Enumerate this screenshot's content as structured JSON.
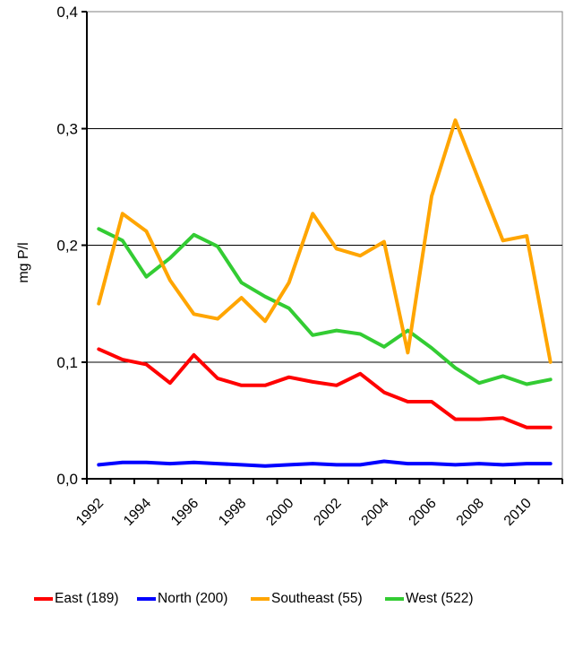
{
  "chart_data": {
    "type": "line",
    "title": "",
    "xlabel": "",
    "ylabel": "mg P/l",
    "ylim": [
      0,
      0.4
    ],
    "ytick_step": 0.1,
    "ytick_labels": [
      "0,0",
      "0,1",
      "0,2",
      "0,3",
      "0,4"
    ],
    "x": [
      1992,
      1993,
      1994,
      1995,
      1996,
      1997,
      1998,
      1999,
      2000,
      2001,
      2002,
      2003,
      2004,
      2005,
      2006,
      2007,
      2008,
      2009,
      2010,
      2011
    ],
    "xtick_labels": [
      "1992",
      "1994",
      "1996",
      "1998",
      "2000",
      "2002",
      "2004",
      "2006",
      "2008",
      "2010"
    ],
    "grid": true,
    "legend_position": "bottom",
    "series": [
      {
        "name": "East (189)",
        "color": "#ff0000",
        "values": [
          0.111,
          0.102,
          0.098,
          0.082,
          0.106,
          0.086,
          0.08,
          0.08,
          0.087,
          0.083,
          0.08,
          0.09,
          0.074,
          0.066,
          0.066,
          0.051,
          0.051,
          0.052,
          0.044,
          0.044
        ]
      },
      {
        "name": "North (200)",
        "color": "#0000ff",
        "values": [
          0.012,
          0.014,
          0.014,
          0.013,
          0.014,
          0.013,
          0.012,
          0.011,
          0.012,
          0.013,
          0.012,
          0.012,
          0.015,
          0.013,
          0.013,
          0.012,
          0.013,
          0.012,
          0.013,
          0.013
        ]
      },
      {
        "name": "Southeast (55)",
        "color": "#ffa500",
        "values": [
          0.15,
          0.227,
          0.212,
          0.17,
          0.141,
          0.137,
          0.155,
          0.135,
          0.168,
          0.227,
          0.197,
          0.191,
          0.203,
          0.108,
          0.242,
          0.307,
          0.255,
          0.204,
          0.208,
          0.1
        ]
      },
      {
        "name": "West (522)",
        "color": "#33cc33",
        "values": [
          0.214,
          0.204,
          0.173,
          0.189,
          0.209,
          0.199,
          0.168,
          0.156,
          0.146,
          0.123,
          0.127,
          0.124,
          0.113,
          0.127,
          0.112,
          0.095,
          0.082,
          0.088,
          0.081,
          0.085
        ]
      }
    ],
    "draw_order": [
      0,
      1,
      3,
      2
    ],
    "colors": {
      "frame": "#808080",
      "grid": "#000000",
      "axis": "#000000",
      "background": "#ffffff",
      "text": "#000000"
    }
  },
  "legend": {
    "items": [
      {
        "label": "East (189)",
        "color": "#ff0000"
      },
      {
        "label": "North (200)",
        "color": "#0000ff"
      },
      {
        "label": "Southeast (55)",
        "color": "#ffa500"
      },
      {
        "label": "West (522)",
        "color": "#33cc33"
      }
    ]
  }
}
